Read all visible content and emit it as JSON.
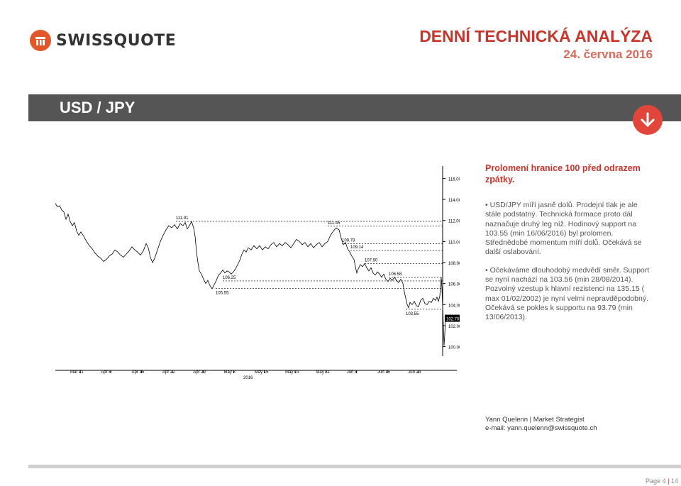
{
  "header": {
    "brand": "SWISSQUOTE",
    "report_title": "DENNÍ TECHNICKÁ ANALÝZA",
    "report_date": "24. června 2016"
  },
  "section": {
    "pair": "USD / JPY",
    "direction_icon": "arrow-down-icon",
    "accent": "#e2463b"
  },
  "analysis": {
    "headline": "Prolomení hranice 100 před odrazem zpátky.",
    "bullets": [
      "• USD/JPY míří jasně dolů. Prodejní tlak je ale stále podstatný. Technická formace proto dál naznačuje druhý leg níž. Hodinový support na 103.55 (min 16/06/2016) byl prolomen. Střednědobé momentum míří dolů. Očekává se další oslabování.",
      "• Očekáváme dlouhodobý medvědí směr. Support se nyní nachází na 103.56 (min 28/08/2014). Pozvolný vzestup k hlavní rezistenci na 135.15 ( max 01/02/2002) je nyní velmi nepravděpodobný. Očekává se pokles k supportu na 93.79 (min 13/06/2013)."
    ]
  },
  "author": {
    "name_line": "Yann Quelenn | Market Strategist",
    "email_line": "e-mail: yann.quelenn@swissquote.ch"
  },
  "footer": {
    "page_label": "Page",
    "page_current": "4",
    "separator": "|",
    "page_total": "14"
  },
  "chart_data": {
    "type": "line",
    "title": "",
    "xlabel": "",
    "ylabel": "",
    "x_ticks": [
      "Mar 31",
      "Apr 8",
      "Apr 15",
      "Apr 22",
      "Apr 29",
      "May 8",
      "May 15",
      "May 23",
      "May 31",
      "Jun 8",
      "Jun 15",
      "Jun 24"
    ],
    "x_year_label": "2016",
    "y_ticks": [
      "116.00",
      "114.00",
      "112.00",
      "110.00",
      "108.00",
      "106.00",
      "104.00",
      "102.00",
      "100.00"
    ],
    "ylim": [
      99.5,
      116.5
    ],
    "last_price": "102.70",
    "levels": [
      {
        "label": "111.91",
        "value": 111.91
      },
      {
        "label": "111.45",
        "value": 111.45
      },
      {
        "label": "109.79",
        "value": 109.79
      },
      {
        "label": "109.14",
        "value": 109.14
      },
      {
        "label": "107.90",
        "value": 107.9
      },
      {
        "label": "106.58",
        "value": 106.58
      },
      {
        "label": "106.25",
        "value": 106.25
      },
      {
        "label": "105.55",
        "value": 105.55
      },
      {
        "label": "103.55",
        "value": 103.55
      }
    ],
    "series": [
      {
        "values": [
          [
            0,
            113.6
          ],
          [
            3,
            113.3
          ],
          [
            6,
            113.4
          ],
          [
            9,
            113.0
          ],
          [
            12,
            112.8
          ],
          [
            15,
            112.1
          ],
          [
            18,
            112.6
          ],
          [
            21,
            111.9
          ],
          [
            24,
            111.5
          ],
          [
            27,
            111.8
          ],
          [
            30,
            111.0
          ],
          [
            33,
            110.6
          ],
          [
            36,
            110.9
          ],
          [
            40,
            110.5
          ],
          [
            44,
            110.0
          ],
          [
            48,
            109.6
          ],
          [
            52,
            109.3
          ],
          [
            56,
            108.9
          ],
          [
            60,
            108.6
          ],
          [
            64,
            108.4
          ],
          [
            68,
            108.1
          ],
          [
            72,
            108.3
          ],
          [
            76,
            108.6
          ],
          [
            80,
            108.8
          ],
          [
            84,
            109.2
          ],
          [
            88,
            109.0
          ],
          [
            92,
            108.7
          ],
          [
            96,
            108.5
          ],
          [
            100,
            108.8
          ],
          [
            104,
            109.1
          ],
          [
            108,
            109.5
          ],
          [
            112,
            109.2
          ],
          [
            116,
            109.0
          ],
          [
            120,
            108.7
          ],
          [
            124,
            109.1
          ],
          [
            128,
            109.8
          ],
          [
            131,
            109.4
          ],
          [
            134,
            108.5
          ],
          [
            137,
            108.0
          ],
          [
            140,
            108.4
          ],
          [
            144,
            109.2
          ],
          [
            148,
            110.0
          ],
          [
            152,
            110.6
          ],
          [
            156,
            111.1
          ],
          [
            160,
            111.5
          ],
          [
            164,
            111.3
          ],
          [
            168,
            111.6
          ],
          [
            172,
            111.2
          ],
          [
            176,
            111.7
          ],
          [
            180,
            111.5
          ],
          [
            183,
            111.8
          ],
          [
            186,
            111.2
          ],
          [
            189,
            111.5
          ],
          [
            192,
            111.9
          ],
          [
            195,
            111.3
          ],
          [
            197,
            110.5
          ],
          [
            199,
            109.0
          ],
          [
            201,
            108.0
          ],
          [
            203,
            107.2
          ],
          [
            206,
            106.9
          ],
          [
            209,
            106.4
          ],
          [
            212,
            106.0
          ],
          [
            215,
            106.3
          ],
          [
            218,
            105.8
          ],
          [
            221,
            105.5
          ],
          [
            224,
            105.9
          ],
          [
            227,
            106.3
          ],
          [
            230,
            106.8
          ],
          [
            233,
            107.0
          ],
          [
            236,
            107.3
          ],
          [
            239,
            107.0
          ],
          [
            242,
            107.2
          ],
          [
            245,
            107.1
          ],
          [
            248,
            106.9
          ],
          [
            251,
            107.1
          ],
          [
            254,
            107.4
          ],
          [
            257,
            107.8
          ],
          [
            260,
            108.2
          ],
          [
            263,
            108.8
          ],
          [
            266,
            109.2
          ],
          [
            269,
            109.0
          ],
          [
            272,
            109.4
          ],
          [
            276,
            109.2
          ],
          [
            280,
            109.6
          ],
          [
            284,
            109.3
          ],
          [
            288,
            109.6
          ],
          [
            292,
            109.2
          ],
          [
            296,
            109.5
          ],
          [
            300,
            109.3
          ],
          [
            304,
            109.7
          ],
          [
            308,
            109.9
          ],
          [
            312,
            109.5
          ],
          [
            316,
            109.8
          ],
          [
            320,
            109.6
          ],
          [
            324,
            109.9
          ],
          [
            328,
            109.7
          ],
          [
            332,
            109.4
          ],
          [
            336,
            109.8
          ],
          [
            340,
            110.2
          ],
          [
            344,
            110.0
          ],
          [
            348,
            109.7
          ],
          [
            352,
            109.9
          ],
          [
            356,
            109.5
          ],
          [
            360,
            109.8
          ],
          [
            364,
            109.4
          ],
          [
            368,
            109.7
          ],
          [
            372,
            109.9
          ],
          [
            376,
            109.5
          ],
          [
            380,
            109.8
          ],
          [
            384,
            110.0
          ],
          [
            388,
            110.6
          ],
          [
            392,
            111.0
          ],
          [
            396,
            111.3
          ],
          [
            400,
            111.1
          ],
          [
            403,
            110.3
          ],
          [
            406,
            109.7
          ],
          [
            409,
            109.9
          ],
          [
            412,
            109.3
          ],
          [
            415,
            109.0
          ],
          [
            418,
            108.6
          ],
          [
            421,
            108.3
          ],
          [
            423,
            107.6
          ],
          [
            425,
            107.0
          ],
          [
            427,
            107.4
          ],
          [
            430,
            107.8
          ],
          [
            433,
            107.6
          ],
          [
            436,
            107.9
          ],
          [
            439,
            107.5
          ],
          [
            442,
            107.2
          ],
          [
            445,
            107.5
          ],
          [
            448,
            107.0
          ],
          [
            451,
            106.8
          ],
          [
            454,
            107.1
          ],
          [
            457,
            106.9
          ],
          [
            460,
            106.6
          ],
          [
            463,
            106.9
          ],
          [
            466,
            106.4
          ],
          [
            469,
            106.2
          ],
          [
            472,
            106.5
          ],
          [
            475,
            106.3
          ],
          [
            478,
            106.6
          ],
          [
            481,
            106.3
          ],
          [
            484,
            106.1
          ],
          [
            487,
            106.4
          ],
          [
            490,
            106.0
          ],
          [
            492,
            105.2
          ],
          [
            494,
            104.6
          ],
          [
            496,
            104.0
          ],
          [
            498,
            103.7
          ],
          [
            500,
            104.2
          ],
          [
            503,
            104.0
          ],
          [
            506,
            104.3
          ],
          [
            509,
            103.9
          ],
          [
            512,
            103.8
          ],
          [
            515,
            104.4
          ],
          [
            518,
            104.6
          ],
          [
            521,
            104.1
          ],
          [
            524,
            104.0
          ],
          [
            527,
            104.3
          ],
          [
            530,
            104.2
          ],
          [
            533,
            104.6
          ],
          [
            536,
            104.4
          ],
          [
            538,
            104.7
          ],
          [
            540,
            104.3
          ],
          [
            542,
            104.8
          ],
          [
            543,
            105.9
          ],
          [
            544,
            106.6
          ],
          [
            545,
            105.5
          ],
          [
            546,
            103.8
          ],
          [
            547,
            102.0
          ],
          [
            548,
            100.1
          ],
          [
            549,
            101.2
          ],
          [
            550,
            102.7
          ]
        ]
      }
    ]
  }
}
